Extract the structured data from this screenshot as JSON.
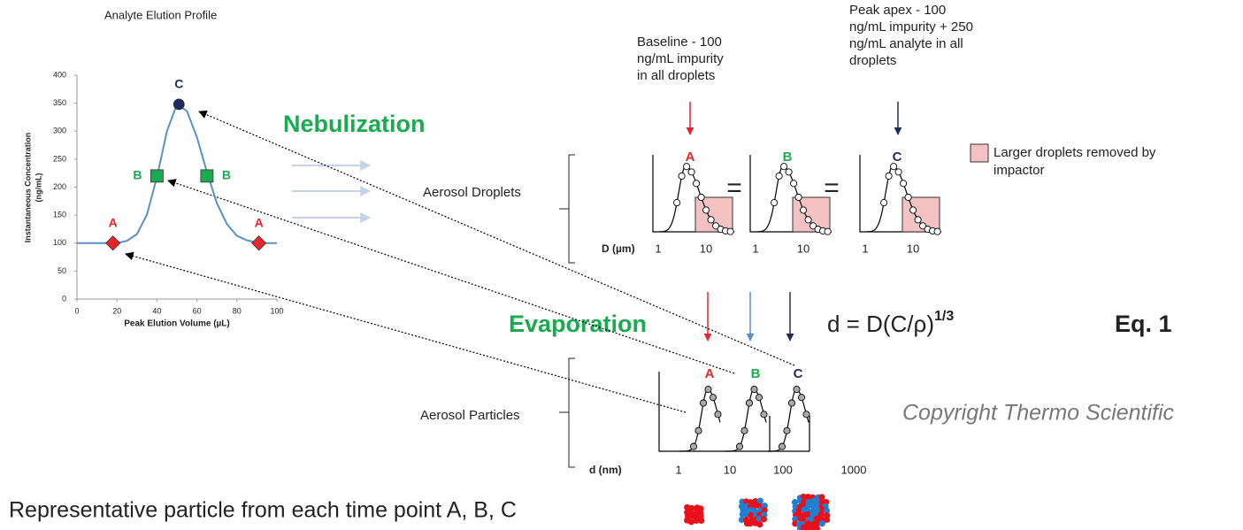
{
  "elution_profile": {
    "title": "Analyte Elution Profile",
    "x_label": "Peak Elution Volume (µL)",
    "y_label": [
      "Instantaneous Concentration",
      "(ng/mL)"
    ],
    "xlim": [
      0,
      100
    ],
    "ylim": [
      0,
      400
    ],
    "xticks": [
      0,
      20,
      40,
      60,
      80,
      100
    ],
    "yticks": [
      0,
      50,
      100,
      150,
      200,
      250,
      300,
      350,
      400
    ],
    "curve": {
      "color": "#5b8fc9",
      "x": [
        0,
        5,
        10,
        15,
        20,
        25,
        30,
        35,
        40,
        45,
        50,
        55,
        60,
        65,
        70,
        75,
        80,
        85,
        90,
        95,
        100
      ],
      "y": [
        100,
        100,
        100,
        100,
        100,
        104,
        116,
        151,
        218,
        300,
        348,
        336,
        289,
        227,
        171,
        134,
        113,
        105,
        101,
        100,
        100
      ]
    },
    "points": [
      {
        "label": "A",
        "x": 18,
        "y": 100,
        "color": "#e8262a",
        "shape": "diamond"
      },
      {
        "label": "B",
        "x": 40,
        "y": 220,
        "color": "#1aaa50",
        "shape": "square"
      },
      {
        "label": "C",
        "x": 51,
        "y": 348,
        "color": "#1f2d5c",
        "shape": "circle"
      },
      {
        "label": "B",
        "x": 65,
        "y": 220,
        "color": "#1aaa50",
        "shape": "square"
      },
      {
        "label": "A",
        "x": 91,
        "y": 100,
        "color": "#e8262a",
        "shape": "diamond"
      }
    ]
  },
  "steps": {
    "nebulization": "Nebulization",
    "evaporation": "Evaporation"
  },
  "annotations": {
    "baseline": [
      "Baseline - 100",
      "ng/mL impurity",
      "in all droplets"
    ],
    "peak_apex": [
      "Peak apex - 100",
      "ng/mL impurity + 250",
      "ng/mL analyte in all",
      "droplets"
    ],
    "impactor_legend": [
      "Larger droplets removed by",
      "impactor"
    ]
  },
  "droplets": {
    "label": "Aerosol Droplets",
    "axis_label": "D (µm)",
    "equals": [
      "=",
      "="
    ],
    "panels": [
      {
        "label": "A",
        "color": "#e8262a",
        "ticks": [
          1,
          10
        ]
      },
      {
        "label": "B",
        "color": "#1aaa50",
        "ticks": [
          1,
          10
        ]
      },
      {
        "label": "C",
        "color": "#1f2d5c",
        "ticks": [
          1,
          10
        ]
      }
    ]
  },
  "particles": {
    "label": "Aerosol Particles",
    "axis_label": "d (nm)",
    "ticks": [
      1,
      10,
      100,
      1000
    ],
    "peaks": [
      {
        "label": "A",
        "color": "#e8262a"
      },
      {
        "label": "B",
        "color": "#1aaa50"
      },
      {
        "label": "C",
        "color": "#1f2d5c"
      }
    ]
  },
  "equation": {
    "text": "d = D(C/ρ)",
    "exponent": "1/3",
    "tag": "Eq. 1"
  },
  "copyright": "Copyright Thermo Scientific",
  "caption": "Representative particle from each time point A, B, C"
}
